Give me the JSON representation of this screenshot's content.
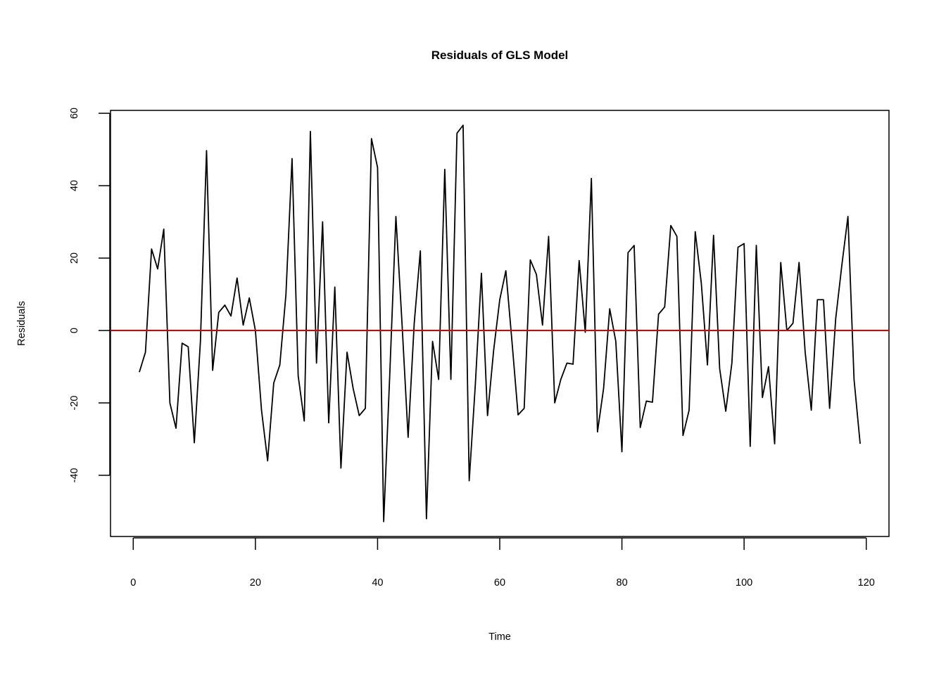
{
  "chart_data": {
    "type": "line",
    "title": "Residuals of GLS Model",
    "x_label": "Time",
    "y_label": "Residuals",
    "x": [
      1,
      2,
      3,
      4,
      5,
      6,
      7,
      8,
      9,
      10,
      11,
      12,
      13,
      14,
      15,
      16,
      17,
      18,
      19,
      20,
      21,
      22,
      23,
      24,
      25,
      26,
      27,
      28,
      29,
      30,
      31,
      32,
      33,
      34,
      35,
      36,
      37,
      38,
      39,
      40,
      41,
      42,
      43,
      44,
      45,
      46,
      47,
      48,
      49,
      50,
      51,
      52,
      53,
      54,
      55,
      56,
      57,
      58,
      59,
      60,
      61,
      62,
      63,
      64,
      65,
      66,
      67,
      68,
      69,
      70,
      71,
      72,
      73,
      74,
      75,
      76,
      77,
      78,
      79,
      80,
      81,
      82,
      83,
      84,
      85,
      86,
      87,
      88,
      89,
      90,
      91,
      92,
      93,
      94,
      95,
      96,
      97,
      98,
      99,
      100,
      101,
      102,
      103,
      104,
      105,
      106,
      107,
      108,
      109,
      110,
      111,
      112,
      113,
      114,
      115,
      116,
      117,
      118,
      119
    ],
    "values": [
      -11.5,
      -6,
      22.5,
      17,
      28,
      -20,
      -27,
      -3.5,
      -4.5,
      -31,
      -3,
      49.7,
      -11,
      5,
      7,
      4,
      14.5,
      1.5,
      9,
      0,
      -22,
      -36,
      -14.5,
      -9.5,
      10,
      47.5,
      -12.5,
      -25,
      55,
      -9,
      30,
      -25.5,
      12,
      -38,
      -6,
      -16,
      -23.5,
      -21.5,
      53,
      45,
      -52.8,
      -12,
      31.5,
      2,
      -29.5,
      2,
      22,
      -52,
      -3,
      -13.5,
      44.5,
      -13.5,
      54.5,
      56.7,
      -41.5,
      -15,
      15.8,
      -23.5,
      -5.5,
      8.5,
      16.5,
      -3,
      -23.3,
      -21.5,
      19.5,
      15.5,
      1.5,
      26,
      -20,
      -13.5,
      -9,
      -9.3,
      19.3,
      -0.5,
      42,
      -28,
      -16,
      6,
      -3,
      -33.5,
      21.5,
      23.5,
      -26.8,
      -19.5,
      -19.8,
      4.5,
      6.5,
      29,
      26,
      -29,
      -22,
      27.3,
      13,
      -9.5,
      26.3,
      -10.5,
      -22.3,
      -9,
      23,
      24,
      -32,
      23.5,
      -18.5,
      -10,
      -31.3,
      18.8,
      0,
      2,
      18.8,
      -6,
      -22,
      8.5,
      8.5,
      -21.5,
      3.3,
      18,
      31.5,
      -13.5,
      -31.3
    ],
    "color": "#000000",
    "reference_line": {
      "value": 0,
      "color": "#dd0000"
    },
    "xlim": [
      -3.72,
      123.72
    ],
    "xticks": [
      0,
      20,
      40,
      60,
      80,
      100,
      120
    ],
    "ylim": [
      -56.9,
      60.8
    ],
    "yticks": [
      -40,
      -20,
      0,
      20,
      40,
      60
    ]
  }
}
